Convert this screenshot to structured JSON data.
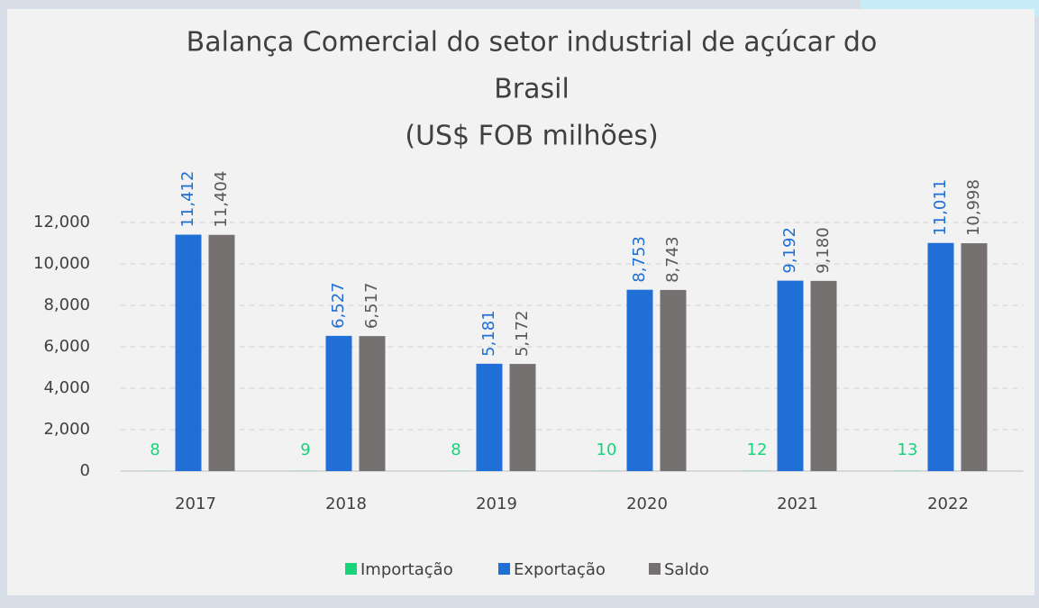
{
  "chart_data": {
    "type": "bar",
    "title": [
      "Balança Comercial do setor industrial de açúcar do",
      "Brasil",
      "(US$ FOB milhões)"
    ],
    "categories": [
      "2017",
      "2018",
      "2019",
      "2020",
      "2021",
      "2022"
    ],
    "series": [
      {
        "name": "Importação",
        "color": "#17d37b",
        "values": [
          8,
          9,
          8,
          10,
          12,
          13
        ]
      },
      {
        "name": "Exportação",
        "color": "#1f6fd6",
        "values": [
          11412,
          6527,
          5181,
          8753,
          9192,
          11011
        ],
        "value_labels": [
          "11,412",
          "6,527",
          "5,181",
          "8,753",
          "9,192",
          "11,011"
        ]
      },
      {
        "name": "Saldo",
        "color": "#767171",
        "values": [
          11404,
          6517,
          5172,
          8743,
          9180,
          10998
        ],
        "value_labels": [
          "11,404",
          "6,517",
          "5,172",
          "8,743",
          "9,180",
          "10,998"
        ]
      }
    ],
    "ylim": [
      0,
      12000
    ],
    "yticks": [
      0,
      {
        "value": 2000,
        "label": "2,000"
      },
      {
        "value": 4000,
        "label": "4,000"
      },
      {
        "value": 6000,
        "label": "6,000"
      },
      {
        "value": 8000,
        "label": "8,000"
      },
      {
        "value": 10000,
        "label": "10,000"
      },
      {
        "value": 12000,
        "label": "12,000"
      }
    ],
    "grid": true,
    "legend": "bottom"
  }
}
